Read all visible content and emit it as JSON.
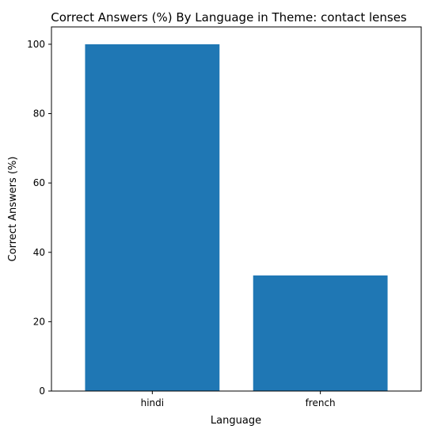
{
  "chart_data": {
    "type": "bar",
    "title": "Correct Answers (%) By Language in Theme: contact lenses",
    "xlabel": "Language",
    "ylabel": "Correct Answers (%)",
    "categories": [
      "hindi",
      "french"
    ],
    "values": [
      100,
      33.33
    ],
    "ylim": [
      0,
      105
    ],
    "yticks": [
      "0",
      "20",
      "40",
      "60",
      "80",
      "100"
    ],
    "bar_color": "#1f77b4",
    "grid": false,
    "legend": "none"
  }
}
